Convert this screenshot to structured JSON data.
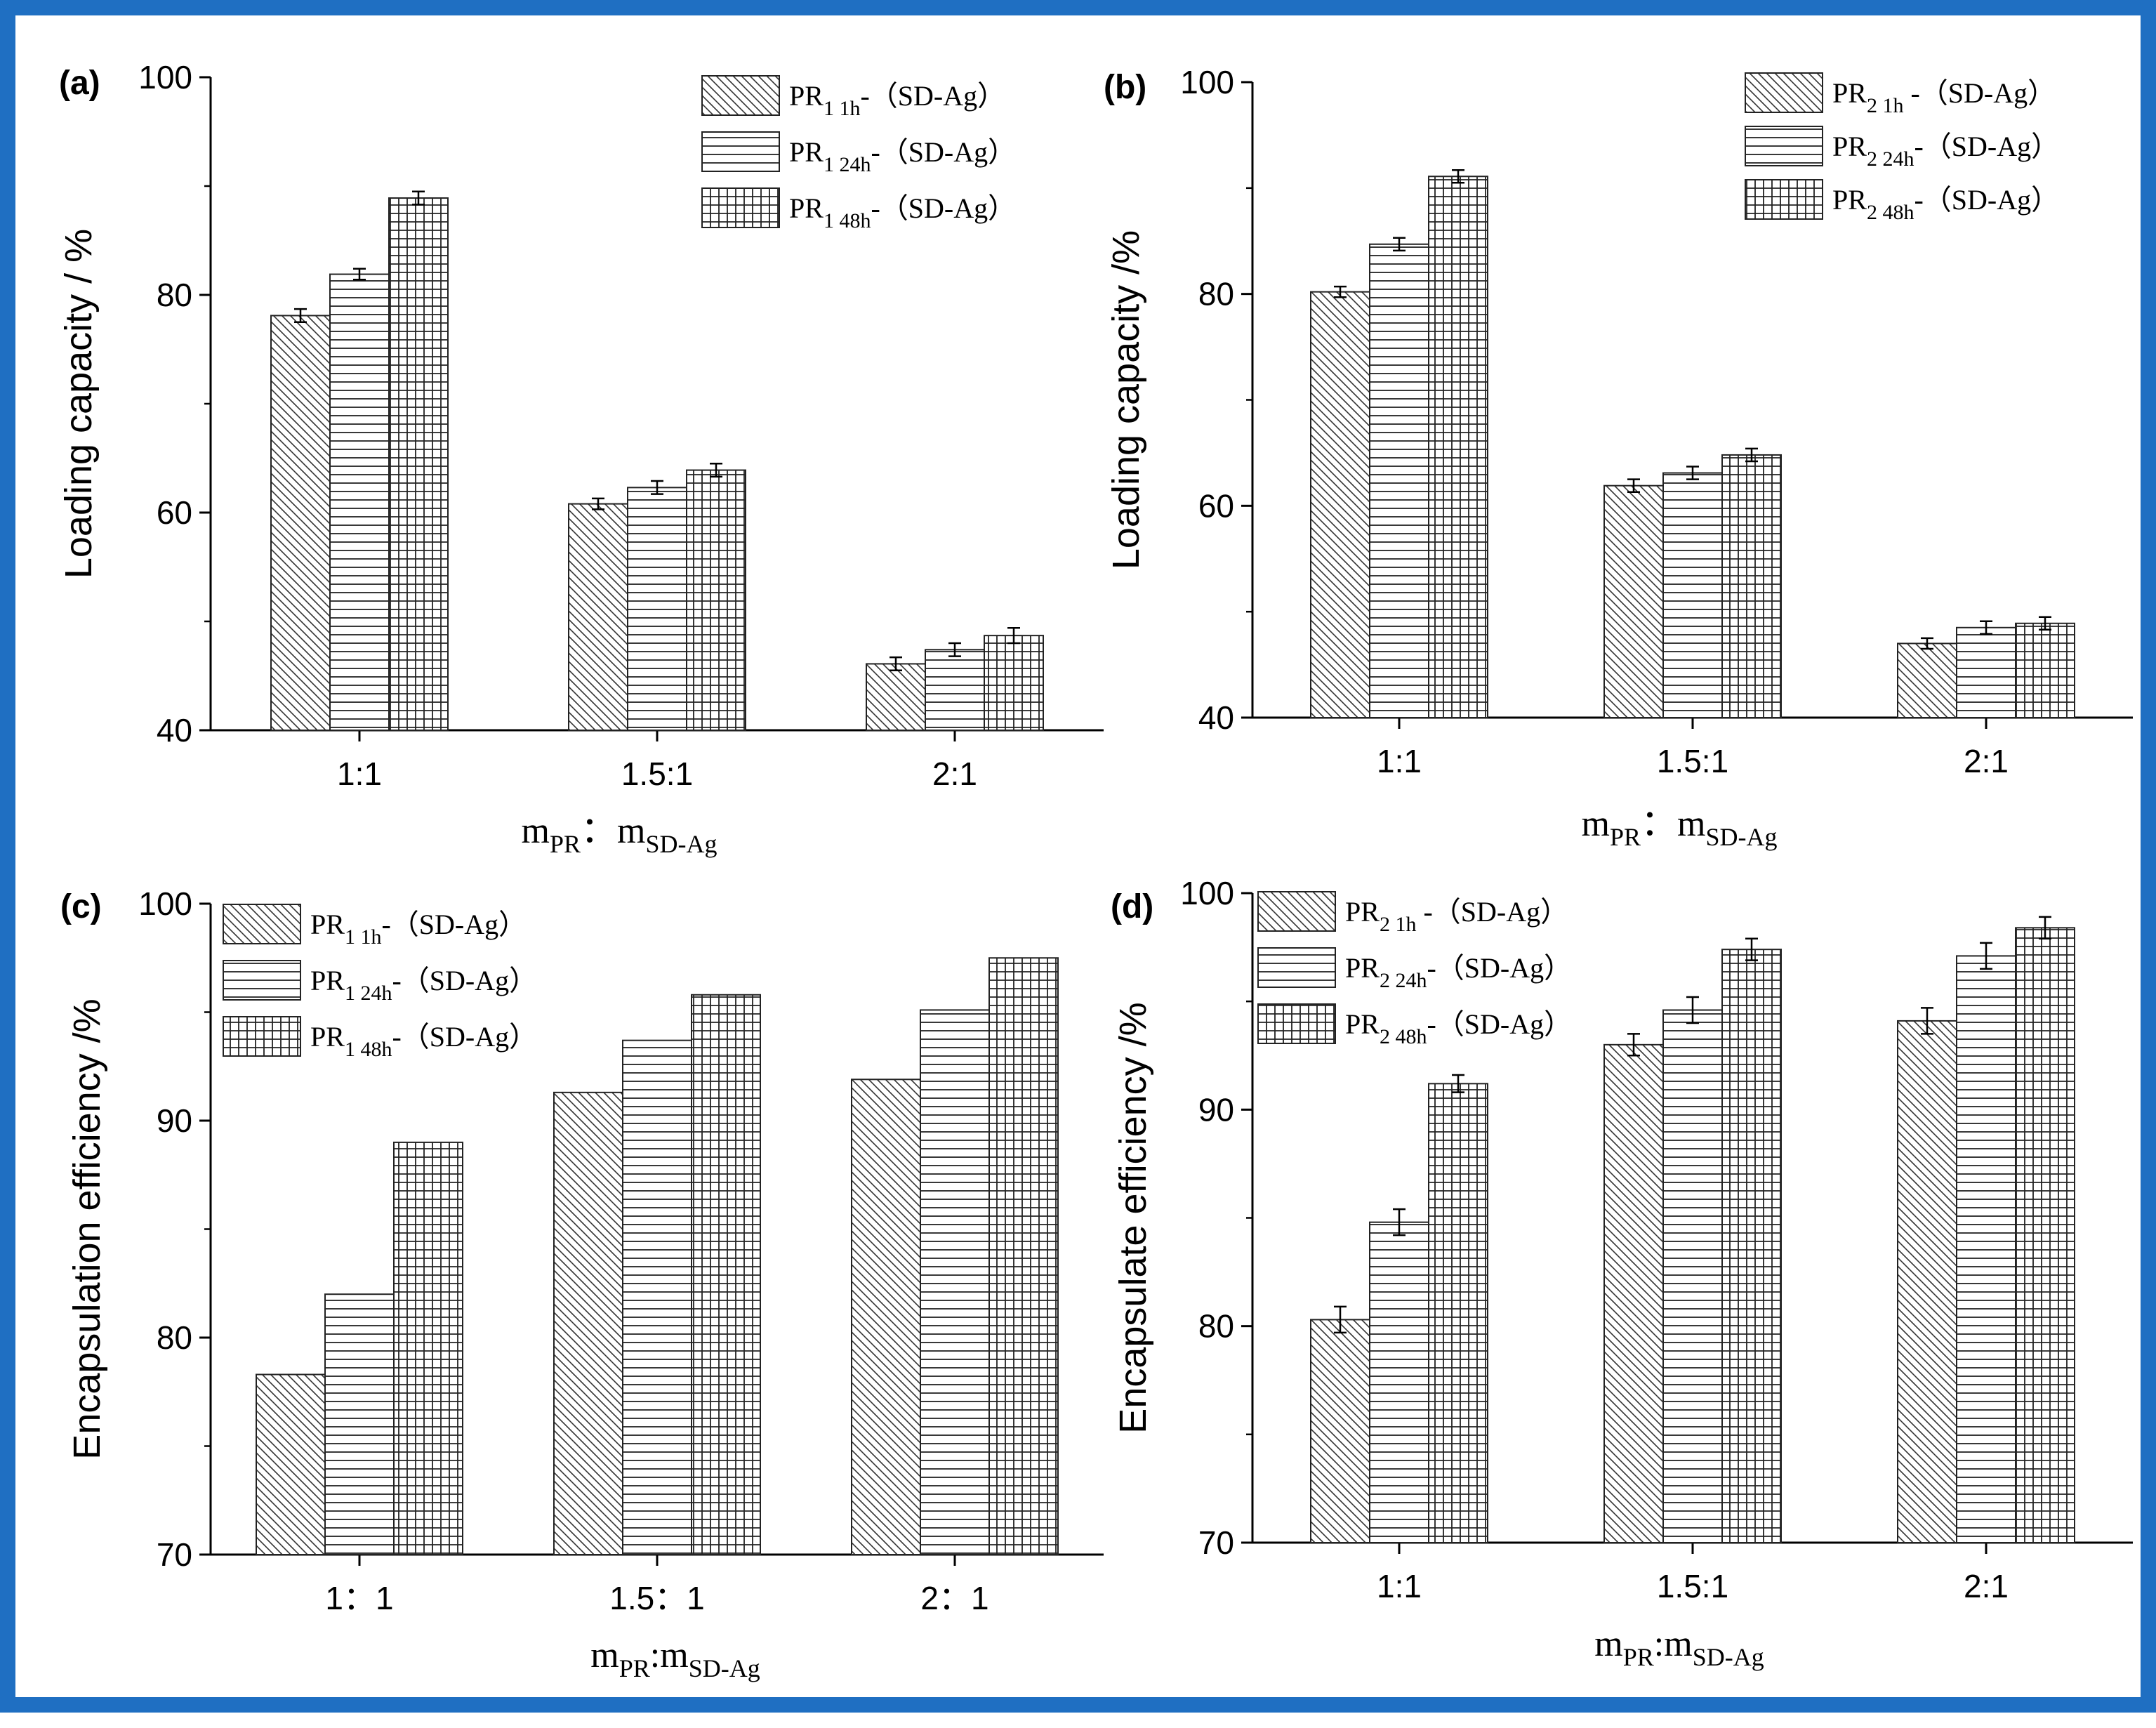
{
  "figure": {
    "border_color": "#1f6fc2"
  },
  "chart_data": [
    {
      "panel": "(a)",
      "type": "bar",
      "ylabel": "Loading capacity / %",
      "xlabel_main": "m",
      "xlabel_sub1": "PR",
      "xlabel_sep": "：",
      "xlabel_sub2": "SD-Ag",
      "categories": [
        "1:1",
        "1.5:1",
        "2:1"
      ],
      "ylim": [
        40,
        100
      ],
      "yticks": [
        40,
        60,
        80,
        100
      ],
      "series": [
        {
          "name": "PR1 1h-（SD-Ag）",
          "pattern": "diag",
          "values": [
            78.1,
            60.8,
            46.1
          ],
          "errors": [
            0.6,
            0.5,
            0.6
          ]
        },
        {
          "name": "PR1 24h-（SD-Ag）",
          "pattern": "hlines",
          "values": [
            81.9,
            62.3,
            47.4
          ],
          "errors": [
            0.5,
            0.6,
            0.6
          ]
        },
        {
          "name": "PR1 48h-（SD-Ag）",
          "pattern": "grid",
          "values": [
            88.9,
            63.9,
            48.7
          ],
          "errors": [
            0.6,
            0.6,
            0.7
          ]
        }
      ],
      "legend": [
        {
          "base": "PR",
          "sub": "1 1h",
          "suffix": "-（SD-Ag）"
        },
        {
          "base": "PR",
          "sub": "1 24h",
          "suffix": "-（SD-Ag）"
        },
        {
          "base": "PR",
          "sub": "1 48h",
          "suffix": "-（SD-Ag）"
        }
      ],
      "legend_position": "top-right"
    },
    {
      "panel": "(b)",
      "type": "bar",
      "ylabel": "Loading capacity /%",
      "xlabel_main": "m",
      "xlabel_sub1": "PR",
      "xlabel_sep": "：",
      "xlabel_sub2": "SD-Ag",
      "categories": [
        "1:1",
        "1.5:1",
        "2:1"
      ],
      "ylim": [
        40,
        100
      ],
      "yticks": [
        40,
        60,
        80,
        100
      ],
      "series": [
        {
          "name": "PR2 1h -（SD-Ag）",
          "pattern": "diag",
          "values": [
            80.2,
            61.9,
            47.0
          ],
          "errors": [
            0.5,
            0.6,
            0.5
          ]
        },
        {
          "name": "PR2 24h-（SD-Ag）",
          "pattern": "hlines",
          "values": [
            84.7,
            63.1,
            48.5
          ],
          "errors": [
            0.6,
            0.6,
            0.6
          ]
        },
        {
          "name": "PR2 48h-（SD-Ag）",
          "pattern": "grid",
          "values": [
            91.1,
            64.8,
            48.9
          ],
          "errors": [
            0.6,
            0.6,
            0.6
          ]
        }
      ],
      "legend": [
        {
          "base": "PR",
          "sub": "2 1h",
          "suffix": " -（SD-Ag）"
        },
        {
          "base": "PR",
          "sub": "2 24h",
          "suffix": "-（SD-Ag）"
        },
        {
          "base": "PR",
          "sub": "2 48h",
          "suffix": "-（SD-Ag）"
        }
      ],
      "legend_position": "top-right"
    },
    {
      "panel": "(c)",
      "type": "bar",
      "ylabel": "Encapsulation efficiency /%",
      "xlabel_main": "m",
      "xlabel_sub1": "PR",
      "xlabel_sep": ":m",
      "xlabel_sub2": "SD-Ag",
      "categories": [
        "1：1",
        "1.5：1",
        "2：1"
      ],
      "ylim": [
        70,
        100
      ],
      "yticks": [
        70,
        80,
        90,
        100
      ],
      "series": [
        {
          "name": "PR1 1h-（SD-Ag）",
          "pattern": "diag",
          "values": [
            78.3,
            91.3,
            91.9
          ]
        },
        {
          "name": "PR1 24h-（SD-Ag）",
          "pattern": "hlines",
          "values": [
            82.0,
            93.7,
            95.1
          ]
        },
        {
          "name": "PR1 48h-（SD-Ag）",
          "pattern": "grid",
          "values": [
            89.0,
            95.8,
            97.5
          ]
        }
      ],
      "legend": [
        {
          "base": "PR",
          "sub": "1 1h",
          "suffix": "-（SD-Ag）"
        },
        {
          "base": "PR",
          "sub": "1 24h",
          "suffix": "-（SD-Ag）"
        },
        {
          "base": "PR",
          "sub": "1 48h",
          "suffix": "-（SD-Ag）"
        }
      ],
      "legend_position": "top-left"
    },
    {
      "panel": "(d)",
      "type": "bar",
      "ylabel": "Encapsulate efficiency /%",
      "xlabel_main": "m",
      "xlabel_sub1": "PR",
      "xlabel_sep": ":m",
      "xlabel_sub2": "SD-Ag",
      "categories": [
        "1:1",
        "1.5:1",
        "2:1"
      ],
      "ylim": [
        70,
        100
      ],
      "yticks": [
        70,
        80,
        90,
        100
      ],
      "series": [
        {
          "name": "PR2 1h -（SD-Ag）",
          "pattern": "diag",
          "values": [
            80.3,
            93.0,
            94.1
          ],
          "errors": [
            0.6,
            0.5,
            0.6
          ]
        },
        {
          "name": "PR2 24h-（SD-Ag）",
          "pattern": "hlines",
          "values": [
            84.8,
            94.6,
            97.1
          ],
          "errors": [
            0.6,
            0.6,
            0.6
          ]
        },
        {
          "name": "PR2 48h-（SD-Ag）",
          "pattern": "grid",
          "values": [
            91.2,
            97.4,
            98.4
          ],
          "errors": [
            0.4,
            0.5,
            0.5
          ]
        }
      ],
      "legend": [
        {
          "base": "PR",
          "sub": "2 1h",
          "suffix": " -（SD-Ag）"
        },
        {
          "base": "PR",
          "sub": "2 24h",
          "suffix": "-（SD-Ag）"
        },
        {
          "base": "PR",
          "sub": "2 48h",
          "suffix": "-（SD-Ag）"
        }
      ],
      "legend_position": "top-left"
    }
  ]
}
